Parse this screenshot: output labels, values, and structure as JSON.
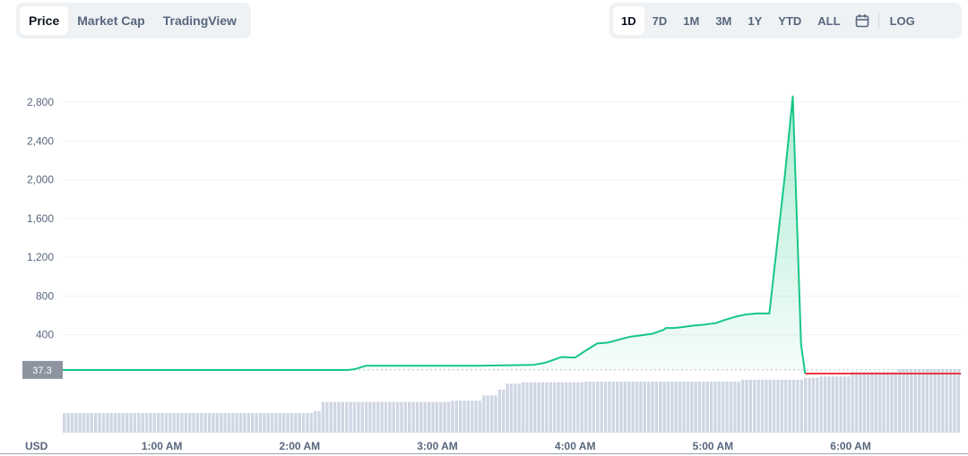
{
  "tabs": {
    "left": [
      "Price",
      "Market Cap",
      "TradingView"
    ],
    "left_active": "Price",
    "range": [
      "1D",
      "7D",
      "1M",
      "3M",
      "1Y",
      "YTD",
      "ALL"
    ],
    "range_active": "1D",
    "calendar_icon": "calendar-icon",
    "log_label": "LOG"
  },
  "chart_data": {
    "type": "area",
    "currency_label": "USD",
    "price_tag": "37.3",
    "reference_price": 37.3,
    "y_ticks": [
      400,
      800,
      1200,
      1600,
      2000,
      2400,
      2800
    ],
    "y_tick_labels": [
      "400",
      "800",
      "1,200",
      "1,600",
      "2,000",
      "2,400",
      "2,800"
    ],
    "y_range": [
      -620,
      3300
    ],
    "x_range_hours": [
      0.28,
      6.8
    ],
    "x_ticks": [
      {
        "h": 1,
        "label": "1:00 AM"
      },
      {
        "h": 2,
        "label": "2:00 AM"
      },
      {
        "h": 3,
        "label": "3:00 AM"
      },
      {
        "h": 4,
        "label": "4:00 AM"
      },
      {
        "h": 5,
        "label": "5:00 AM"
      },
      {
        "h": 6,
        "label": "6:00 AM"
      }
    ],
    "price_series": [
      {
        "t": 0.28,
        "v": 37
      },
      {
        "t": 2.35,
        "v": 37
      },
      {
        "t": 2.4,
        "v": 45
      },
      {
        "t": 2.48,
        "v": 80
      },
      {
        "t": 3.3,
        "v": 80
      },
      {
        "t": 3.7,
        "v": 90
      },
      {
        "t": 3.78,
        "v": 110
      },
      {
        "t": 3.9,
        "v": 170
      },
      {
        "t": 4.0,
        "v": 165
      },
      {
        "t": 4.08,
        "v": 240
      },
      {
        "t": 4.16,
        "v": 310
      },
      {
        "t": 4.24,
        "v": 320
      },
      {
        "t": 4.32,
        "v": 350
      },
      {
        "t": 4.4,
        "v": 380
      },
      {
        "t": 4.48,
        "v": 395
      },
      {
        "t": 4.56,
        "v": 410
      },
      {
        "t": 4.64,
        "v": 450
      },
      {
        "t": 4.66,
        "v": 470
      },
      {
        "t": 4.72,
        "v": 470
      },
      {
        "t": 4.78,
        "v": 480
      },
      {
        "t": 4.86,
        "v": 495
      },
      {
        "t": 4.94,
        "v": 505
      },
      {
        "t": 5.02,
        "v": 520
      },
      {
        "t": 5.08,
        "v": 550
      },
      {
        "t": 5.16,
        "v": 585
      },
      {
        "t": 5.24,
        "v": 610
      },
      {
        "t": 5.32,
        "v": 620
      },
      {
        "t": 5.41,
        "v": 620
      },
      {
        "t": 5.52,
        "v": 2010
      },
      {
        "t": 5.58,
        "v": 2860
      },
      {
        "t": 5.64,
        "v": 300
      },
      {
        "t": 5.67,
        "v": 0
      }
    ],
    "down_series": [
      {
        "t": 5.67,
        "v": 0
      },
      {
        "t": 6.8,
        "v": 0
      }
    ],
    "volume_bars": [
      0.3,
      0.3,
      0.3,
      0.3,
      0.3,
      0.3,
      0.3,
      0.3,
      0.3,
      0.3,
      0.3,
      0.3,
      0.3,
      0.3,
      0.3,
      0.3,
      0.3,
      0.3,
      0.3,
      0.3,
      0.3,
      0.3,
      0.3,
      0.3,
      0.3,
      0.3,
      0.3,
      0.3,
      0.3,
      0.3,
      0.3,
      0.3,
      0.3,
      0.3,
      0.3,
      0.3,
      0.3,
      0.3,
      0.3,
      0.3,
      0.3,
      0.3,
      0.3,
      0.3,
      0.3,
      0.3,
      0.3,
      0.3,
      0.3,
      0.3,
      0.3,
      0.3,
      0.3,
      0.3,
      0.3,
      0.3,
      0.3,
      0.3,
      0.3,
      0.3,
      0.3,
      0.3,
      0.3,
      0.3,
      0.33,
      0.33,
      0.47,
      0.47,
      0.47,
      0.47,
      0.47,
      0.47,
      0.47,
      0.47,
      0.47,
      0.47,
      0.47,
      0.47,
      0.47,
      0.47,
      0.47,
      0.47,
      0.47,
      0.47,
      0.47,
      0.47,
      0.47,
      0.47,
      0.47,
      0.47,
      0.47,
      0.47,
      0.47,
      0.47,
      0.47,
      0.47,
      0.47,
      0.47,
      0.47,
      0.49,
      0.49,
      0.49,
      0.49,
      0.49,
      0.49,
      0.49,
      0.49,
      0.57,
      0.57,
      0.57,
      0.57,
      0.66,
      0.66,
      0.75,
      0.75,
      0.75,
      0.75,
      0.77,
      0.77,
      0.77,
      0.77,
      0.77,
      0.77,
      0.77,
      0.77,
      0.77,
      0.77,
      0.77,
      0.77,
      0.77,
      0.77,
      0.77,
      0.77,
      0.78,
      0.78,
      0.78,
      0.78,
      0.78,
      0.78,
      0.78,
      0.78,
      0.78,
      0.78,
      0.78,
      0.78,
      0.78,
      0.78,
      0.78,
      0.78,
      0.78,
      0.78,
      0.78,
      0.78,
      0.78,
      0.78,
      0.78,
      0.78,
      0.78,
      0.78,
      0.78,
      0.78,
      0.78,
      0.78,
      0.78,
      0.78,
      0.78,
      0.78,
      0.78,
      0.78,
      0.78,
      0.78,
      0.78,
      0.78,
      0.81,
      0.81,
      0.81,
      0.81,
      0.81,
      0.81,
      0.81,
      0.81,
      0.81,
      0.81,
      0.81,
      0.81,
      0.81,
      0.81,
      0.81,
      0.81,
      0.84,
      0.84,
      0.84,
      0.84,
      0.86,
      0.86,
      0.86,
      0.86,
      0.86,
      0.86,
      0.86,
      0.86,
      0.93,
      0.93,
      0.93,
      0.93,
      0.93,
      0.93,
      0.93,
      0.93,
      0.93,
      0.93,
      0.93,
      0.93,
      0.97,
      0.97,
      0.97,
      0.97,
      0.97,
      0.97,
      0.97,
      0.97,
      0.97,
      0.97,
      0.97,
      0.97,
      0.97,
      0.97,
      0.97,
      0.97
    ],
    "colors": {
      "up": "#16c784",
      "down": "#ea3943",
      "volume": "#cfd6e4",
      "grid": "#eff2f5",
      "axis_text": "#58667e",
      "price_tag_bg": "#8d94a0"
    },
    "grid": true
  }
}
